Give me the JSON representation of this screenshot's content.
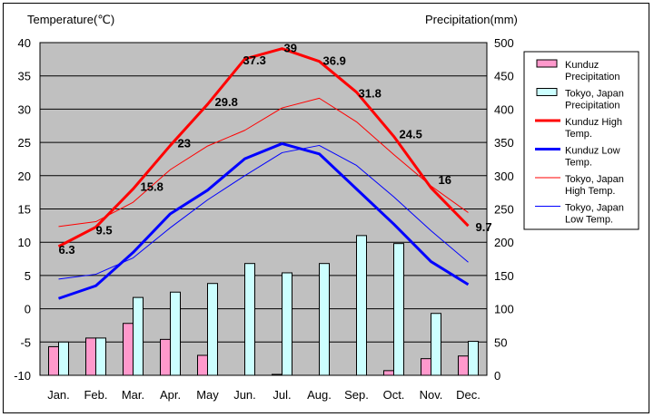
{
  "chart_data": {
    "type": "bar+line",
    "title": "",
    "left_axis_title": "Temperature(℃)",
    "right_axis_title": "Precipitation(mm)",
    "categories": [
      "Jan.",
      "Feb.",
      "Mar.",
      "Apr.",
      "May",
      "Jun.",
      "Jul.",
      "Aug.",
      "Sep.",
      "Oct.",
      "Nov.",
      "Dec."
    ],
    "ylim_left": [
      -15,
      40
    ],
    "yticks_left": [
      "40",
      "35",
      "30",
      "25",
      "20",
      "15",
      "10",
      "5",
      "0",
      "-5",
      "-10"
    ],
    "ylim_right": [
      0,
      500
    ],
    "yticks_right": [
      "500",
      "450",
      "400",
      "350",
      "300",
      "250",
      "200",
      "150",
      "100",
      "50",
      "0"
    ],
    "grid": "horizontal",
    "legend_position": "right",
    "bar_series": [
      {
        "name": "Kunduz Precipitation",
        "color": "#ff99cc",
        "values": [
          43,
          56,
          78,
          54,
          30,
          0,
          1,
          0,
          0,
          7,
          25,
          29
        ]
      },
      {
        "name": "Tokyo, Japan Precipitation",
        "color": "#ccffff",
        "values": [
          50,
          56,
          117,
          125,
          138,
          168,
          154,
          168,
          210,
          198,
          93,
          51
        ]
      }
    ],
    "line_series": [
      {
        "name": "Kunduz High Temp.",
        "color": "#ff0000",
        "width": 3,
        "values": [
          6.3,
          9.5,
          15.8,
          23,
          29.8,
          37.3,
          39,
          36.9,
          31.8,
          24.5,
          16,
          9.7
        ],
        "labels": [
          "6.3",
          "9.5",
          "15.8",
          "23",
          "29.8",
          "37.3",
          "39",
          "36.9",
          "31.8",
          "24.5",
          "16",
          "9.7"
        ]
      },
      {
        "name": "Kunduz Low Temp.",
        "color": "#0000ff",
        "width": 3,
        "values": [
          -2.3,
          -0.2,
          5.3,
          11.7,
          15.6,
          20.8,
          23.3,
          21.6,
          15.8,
          10,
          3.8,
          0
        ]
      },
      {
        "name": "Tokyo, Japan High Temp.",
        "color": "#ff0000",
        "width": 1,
        "values": [
          9.6,
          10.4,
          13.6,
          19,
          22.9,
          25.5,
          29.2,
          30.8,
          26.9,
          21.5,
          16.3,
          11.9
        ]
      },
      {
        "name": "Tokyo, Japan Low Temp.",
        "color": "#0000ff",
        "width": 1,
        "values": [
          0.9,
          1.7,
          4.4,
          9.4,
          14,
          18,
          21.8,
          23,
          19.7,
          14.5,
          8.9,
          3.7
        ]
      }
    ],
    "legend": [
      {
        "label_lines": [
          "Kunduz",
          "Precipitation"
        ],
        "kind": "box",
        "color": "#ff99cc"
      },
      {
        "label_lines": [
          "Tokyo, Japan",
          "Precipitation"
        ],
        "kind": "box",
        "color": "#ccffff"
      },
      {
        "label_lines": [
          "Kunduz High",
          "Temp."
        ],
        "kind": "line",
        "color": "#ff0000",
        "width": 3
      },
      {
        "label_lines": [
          "Kunduz Low",
          "Temp."
        ],
        "kind": "line",
        "color": "#0000ff",
        "width": 3
      },
      {
        "label_lines": [
          "Tokyo, Japan",
          "High Temp."
        ],
        "kind": "line",
        "color": "#ff0000",
        "width": 1
      },
      {
        "label_lines": [
          "Tokyo, Japan",
          "Low Temp."
        ],
        "kind": "line",
        "color": "#0000ff",
        "width": 1
      }
    ],
    "plot_background": "#c0c0c0"
  }
}
